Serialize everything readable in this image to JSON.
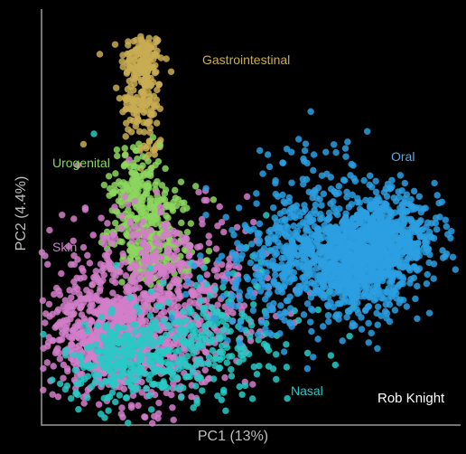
{
  "chart_data": {
    "type": "scatter",
    "title": "",
    "xlabel": "PC1 (13%)",
    "ylabel": "PC2 (4.4%)",
    "xlim": [
      -1,
      1
    ],
    "ylim": [
      -1,
      1
    ],
    "grid": false,
    "legend": "none",
    "credit": "Rob Knight",
    "series": [
      {
        "name": "Gastrointestinal",
        "color": "#c9ad52",
        "label_color": "#c9ad52",
        "centers": [
          [
            -0.52,
            0.75
          ],
          [
            -0.52,
            0.55
          ],
          [
            -0.5,
            0.35
          ]
        ],
        "spread": [
          [
            0.05,
            0.07
          ],
          [
            0.05,
            0.07
          ],
          [
            0.04,
            0.06
          ]
        ],
        "count": [
          130,
          90,
          30
        ],
        "outliers": [
          [
            -0.8,
            0.35
          ],
          [
            -0.46,
            0.3
          ]
        ]
      },
      {
        "name": "Urogenital",
        "color": "#8dd65f",
        "label_color": "#8dd65f",
        "centers": [
          [
            -0.55,
            0.15
          ],
          [
            -0.48,
            -0.05
          ],
          [
            -0.45,
            -0.2
          ]
        ],
        "spread": [
          [
            0.06,
            0.1
          ],
          [
            0.1,
            0.1
          ],
          [
            0.08,
            0.06
          ]
        ],
        "count": [
          120,
          180,
          90
        ],
        "outliers": []
      },
      {
        "name": "Skin",
        "color": "#d27ec9",
        "label_color": "#d27ec9",
        "centers": [
          [
            -0.7,
            -0.6
          ],
          [
            -0.45,
            -0.55
          ],
          [
            -0.35,
            -0.35
          ],
          [
            -0.6,
            -0.3
          ]
        ],
        "spread": [
          [
            0.14,
            0.12
          ],
          [
            0.2,
            0.2
          ],
          [
            0.22,
            0.18
          ],
          [
            0.2,
            0.2
          ]
        ],
        "count": [
          500,
          350,
          250,
          200
        ],
        "outliers": [
          [
            -0.45,
            0.12
          ],
          [
            -0.15,
            0.05
          ],
          [
            -0.25,
            0.12
          ]
        ]
      },
      {
        "name": "Nasal",
        "color": "#29c9c6",
        "label_color": "#29c9c6",
        "centers": [
          [
            -0.6,
            -0.7
          ],
          [
            -0.35,
            -0.62
          ],
          [
            -0.1,
            -0.55
          ]
        ],
        "spread": [
          [
            0.15,
            0.1
          ],
          [
            0.2,
            0.12
          ],
          [
            0.25,
            0.2
          ]
        ],
        "count": [
          200,
          180,
          100
        ],
        "outliers": [
          [
            -0.75,
            0.4
          ],
          [
            0.12,
            -0.78
          ]
        ]
      },
      {
        "name": "Oral",
        "color": "#2b9fe0",
        "label_color": "#5aa9e0",
        "centers": [
          [
            0.62,
            -0.12
          ],
          [
            0.48,
            -0.28
          ],
          [
            0.3,
            -0.15
          ],
          [
            0.15,
            -0.3
          ],
          [
            0.4,
            0.1
          ]
        ],
        "spread": [
          [
            0.14,
            0.1
          ],
          [
            0.12,
            0.1
          ],
          [
            0.15,
            0.1
          ],
          [
            0.2,
            0.15
          ],
          [
            0.2,
            0.15
          ]
        ],
        "count": [
          700,
          400,
          250,
          200,
          120
        ],
        "outliers": [
          [
            0.08,
            0.3
          ],
          [
            0.3,
            0.3
          ],
          [
            0.25,
            0.28
          ]
        ]
      }
    ]
  }
}
